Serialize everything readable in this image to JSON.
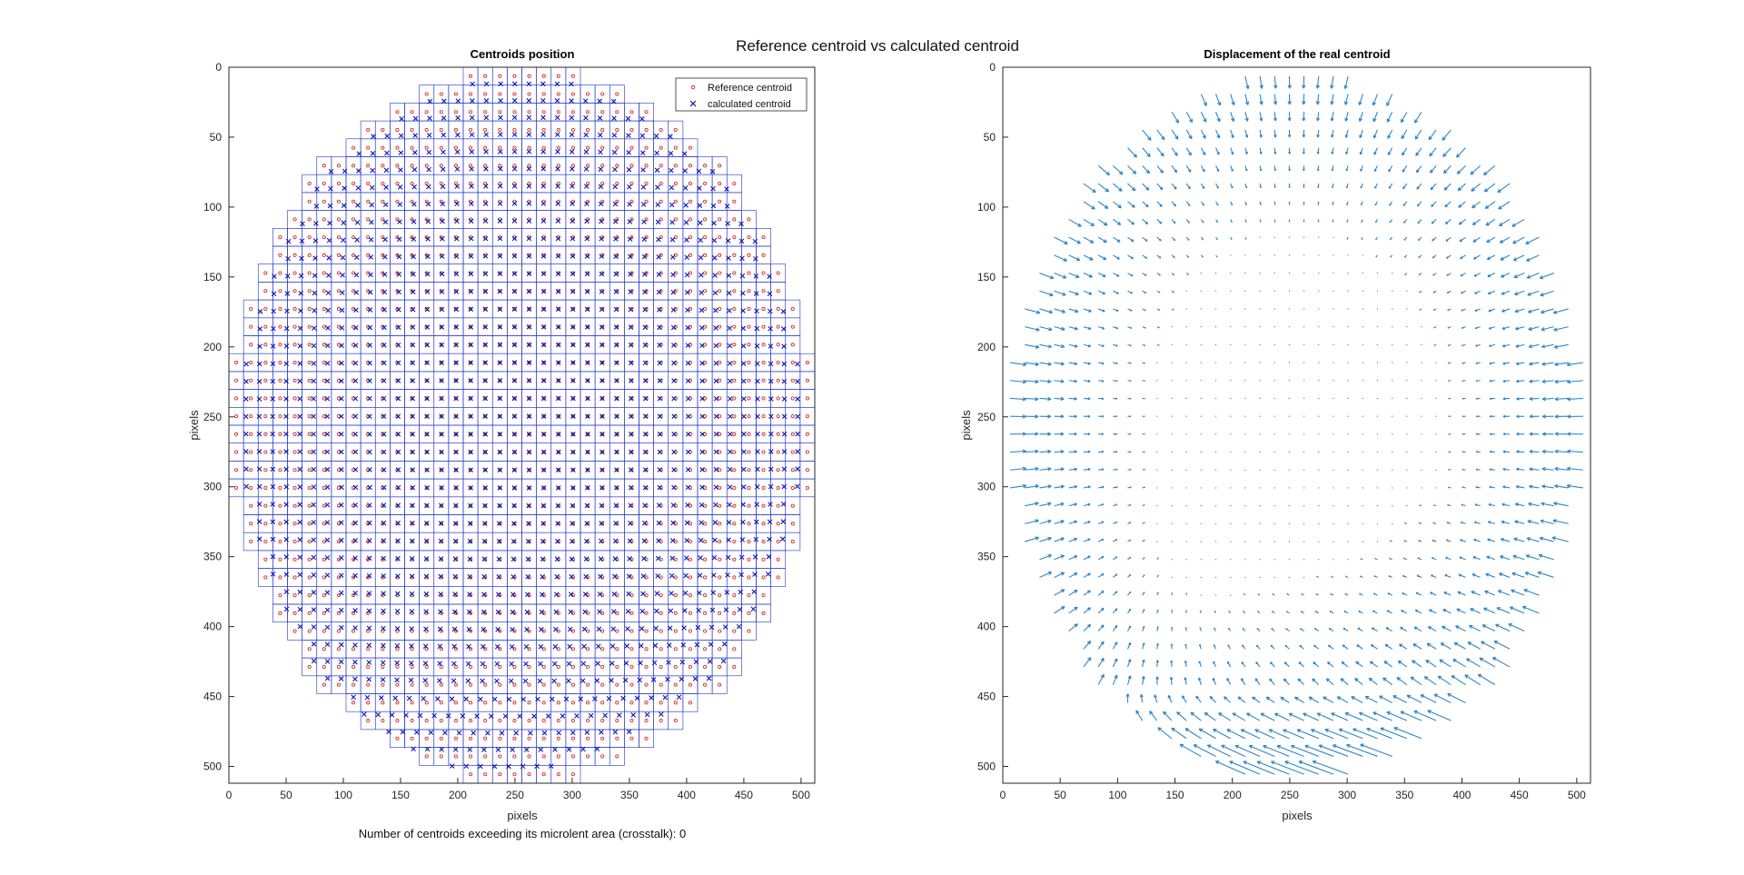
{
  "figure": {
    "title": "Reference centroid vs calculated centroid",
    "note": "Number of centroids exceeding its microlent area (crosstalk): 0"
  },
  "colors": {
    "reference": "#d9302a",
    "calculated": "#0b16b8",
    "grid_box": "#2233c8",
    "quiver": "#2f86c8",
    "axes": "#262626"
  },
  "chart_data": [
    {
      "type": "scatter",
      "title": "Centroids position",
      "xlabel": "pixels",
      "ylabel": "pixels",
      "xlim": [
        0,
        512
      ],
      "ylim": [
        0,
        512
      ],
      "y_direction": "reversed",
      "x_ticks": [
        0,
        50,
        100,
        150,
        200,
        250,
        300,
        350,
        400,
        450,
        500
      ],
      "y_ticks": [
        0,
        50,
        100,
        150,
        200,
        250,
        300,
        350,
        400,
        450,
        500
      ],
      "grid": false,
      "legend_position": "top-right",
      "aperture": {
        "center": [
          256,
          256
        ],
        "radius": 256
      },
      "lenslet_pitch": 12.8,
      "series": [
        {
          "name": "Reference centroid",
          "marker": "circle"
        },
        {
          "name": "calculated centroid",
          "marker": "x"
        }
      ]
    },
    {
      "type": "quiver",
      "title": "Displacement of the real centroid",
      "xlabel": "pixels",
      "ylabel": "pixels",
      "xlim": [
        0,
        512
      ],
      "ylim": [
        0,
        512
      ],
      "y_direction": "reversed",
      "x_ticks": [
        0,
        50,
        100,
        150,
        200,
        250,
        300,
        350,
        400,
        450,
        500
      ],
      "y_ticks": [
        0,
        50,
        100,
        150,
        200,
        250,
        300,
        350,
        400,
        450,
        500
      ],
      "grid": false
    }
  ]
}
